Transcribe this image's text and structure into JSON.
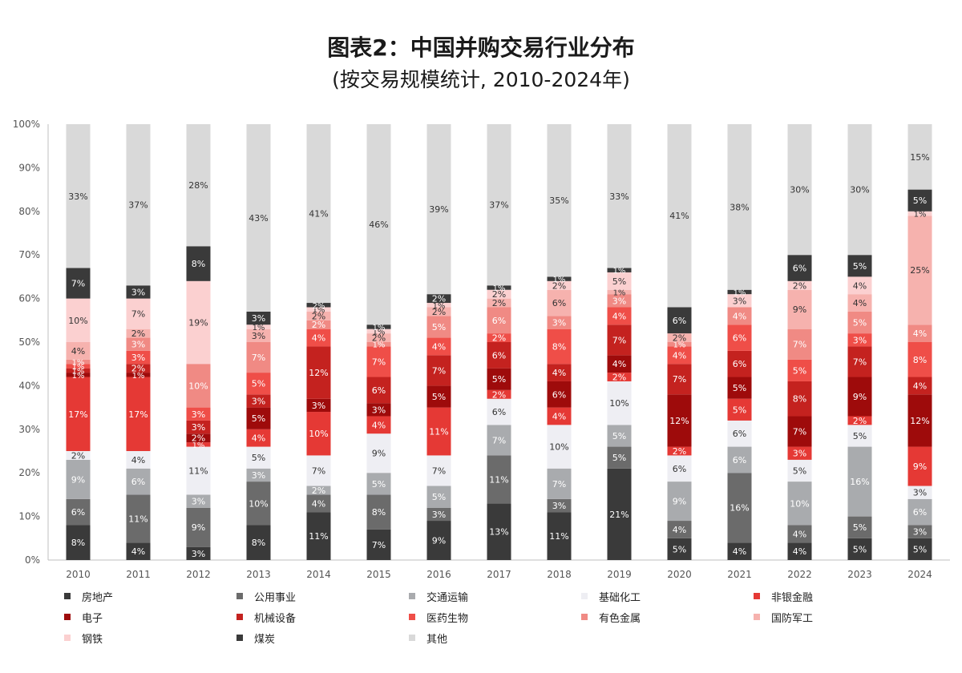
{
  "title": "图表2：中国并购交易行业分布",
  "subtitle": "(按交易规模统计, 2010-2024年)",
  "chart_data": {
    "type": "bar",
    "stacked": true,
    "percent_stacked": true,
    "categories": [
      "2010",
      "2011",
      "2012",
      "2013",
      "2014",
      "2015",
      "2016",
      "2017",
      "2018",
      "2019",
      "2020",
      "2021",
      "2022",
      "2023",
      "2024"
    ],
    "ylim": [
      0,
      100
    ],
    "yticks": [
      "0%",
      "10%",
      "20%",
      "30%",
      "40%",
      "50%",
      "60%",
      "70%",
      "80%",
      "90%",
      "100%"
    ],
    "legend_position": "bottom",
    "series": [
      {
        "name": "房地产",
        "color": "#3a3a3a",
        "label_color": "#ffffff",
        "values": [
          8,
          4,
          3,
          8,
          11,
          7,
          9,
          13,
          11,
          21,
          5,
          4,
          4,
          5,
          5
        ]
      },
      {
        "name": "公用事业",
        "color": "#6b6b6b",
        "label_color": "#ffffff",
        "values": [
          6,
          11,
          9,
          10,
          4,
          8,
          3,
          11,
          3,
          5,
          4,
          16,
          4,
          5,
          3
        ]
      },
      {
        "name": "交通运输",
        "color": "#a9abae",
        "label_color": "#ffffff",
        "values": [
          9,
          6,
          3,
          3,
          2,
          5,
          5,
          7,
          7,
          5,
          9,
          6,
          10,
          16,
          6
        ]
      },
      {
        "name": "基础化工",
        "color": "#eeeef3",
        "label_color": "#333333",
        "values": [
          2,
          4,
          11,
          5,
          7,
          9,
          7,
          6,
          10,
          10,
          6,
          6,
          5,
          5,
          3
        ]
      },
      {
        "name": "非银金融",
        "color": "#e53935",
        "label_color": "#ffffff",
        "values": [
          17,
          17,
          1,
          4,
          10,
          4,
          11,
          2,
          4,
          2,
          2,
          5,
          3,
          2,
          9
        ]
      },
      {
        "name": "电子",
        "color": "#9e0b0b",
        "label_color": "#ffffff",
        "values": [
          1,
          1,
          2,
          5,
          3,
          3,
          5,
          5,
          6,
          4,
          12,
          5,
          7,
          9,
          12
        ]
      },
      {
        "name": "机械设备",
        "color": "#c4221f",
        "label_color": "#ffffff",
        "values": [
          1,
          2,
          3,
          3,
          12,
          6,
          7,
          6,
          4,
          7,
          7,
          6,
          8,
          7,
          4
        ]
      },
      {
        "name": "医药生物",
        "color": "#ef4e48",
        "label_color": "#ffffff",
        "values": [
          1,
          3,
          3,
          5,
          4,
          7,
          4,
          2,
          8,
          4,
          4,
          6,
          5,
          3,
          8
        ]
      },
      {
        "name": "有色金属",
        "color": "#f08a84",
        "label_color": "#ffffff",
        "values": [
          1,
          3,
          10,
          7,
          2,
          1,
          5,
          6,
          3,
          3,
          1,
          4,
          7,
          5,
          4
        ]
      },
      {
        "name": "国防军工",
        "color": "#f6b2ae",
        "label_color": "#333333",
        "values": [
          4,
          2,
          0,
          3,
          2,
          2,
          2,
          2,
          6,
          1,
          2,
          0,
          9,
          4,
          25
        ]
      },
      {
        "name": "钢铁",
        "color": "#fbd0d0",
        "label_color": "#333333",
        "values": [
          10,
          7,
          19,
          1,
          1,
          1,
          1,
          2,
          2,
          5,
          0,
          3,
          2,
          4,
          1
        ]
      },
      {
        "name": "煤炭",
        "color": "#3a3a3a",
        "label_color": "#ffffff",
        "values": [
          7,
          3,
          8,
          3,
          2,
          1,
          2,
          1,
          1,
          1,
          6,
          1,
          6,
          5,
          5
        ]
      },
      {
        "name": "其他",
        "color": "#d9d9d9",
        "label_color": "#333333",
        "values": [
          33,
          37,
          28,
          43,
          41,
          46,
          39,
          37,
          35,
          33,
          41,
          38,
          30,
          30,
          15
        ]
      }
    ],
    "cumulative_tops": [
      [
        8,
        14,
        23,
        25,
        42,
        43,
        44,
        45,
        46,
        50,
        60,
        67,
        100
      ],
      [
        4,
        15,
        21,
        25,
        42,
        43,
        45,
        48,
        51,
        53,
        60,
        63,
        100
      ],
      [
        3,
        12,
        15,
        26,
        27,
        29,
        32,
        35,
        45,
        45,
        64,
        72,
        100
      ],
      [
        8,
        18,
        21,
        26,
        30,
        35,
        38,
        43,
        50,
        53,
        54,
        57,
        100
      ],
      [
        11,
        15,
        17,
        24,
        34,
        37,
        49,
        53,
        55,
        57,
        58,
        59,
        100
      ],
      [
        7,
        15,
        20,
        29,
        33,
        36,
        42,
        49,
        50,
        52,
        53,
        54,
        100
      ],
      [
        9,
        12,
        17,
        24,
        35,
        40,
        47,
        51,
        56,
        58,
        59,
        61,
        100
      ],
      [
        13,
        24,
        31,
        37,
        39,
        44,
        50,
        52,
        58,
        60,
        62,
        63,
        100
      ],
      [
        11,
        14,
        21,
        31,
        35,
        41,
        45,
        53,
        56,
        62,
        64,
        65,
        100
      ],
      [
        21,
        26,
        31,
        41,
        43,
        47,
        54,
        58,
        61,
        62,
        66,
        67,
        100
      ],
      [
        5,
        9,
        18,
        24,
        26,
        38,
        45,
        49,
        50,
        52,
        52,
        58,
        100
      ],
      [
        4,
        20,
        26,
        32,
        37,
        42,
        48,
        54,
        58,
        58,
        61,
        62,
        100
      ],
      [
        4,
        8,
        18,
        23,
        26,
        33,
        41,
        46,
        53,
        62,
        64,
        70,
        100
      ],
      [
        5,
        10,
        26,
        31,
        33,
        42,
        49,
        52,
        57,
        61,
        65,
        70,
        100
      ],
      [
        5,
        8,
        14,
        17,
        26,
        38,
        42,
        50,
        54,
        79,
        80,
        85,
        100
      ]
    ]
  }
}
